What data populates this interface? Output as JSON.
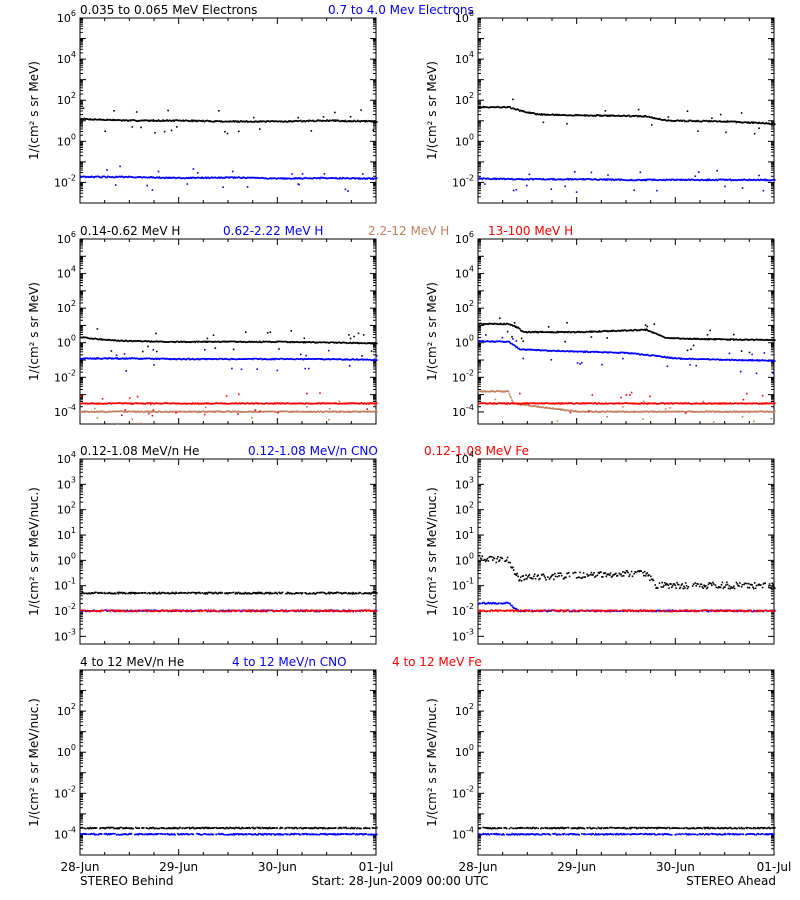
{
  "colors": {
    "black": "#000000",
    "blue": "#0000ff",
    "tan": "#c08060",
    "red": "#ff0000"
  },
  "row_titles": [
    [
      {
        "text": "0.035 to 0.065 MeV Electrons",
        "color": "black"
      },
      {
        "text": "0.7 to 4.0 Mev Electrons",
        "color": "blue"
      }
    ],
    [
      {
        "text": "0.14-0.62 MeV H",
        "color": "black"
      },
      {
        "text": "0.62-2.22 MeV H",
        "color": "blue"
      },
      {
        "text": "2.2-12 MeV H",
        "color": "tan"
      },
      {
        "text": "13-100 MeV H",
        "color": "red"
      }
    ],
    [
      {
        "text": "0.12-1.08 MeV/n He",
        "color": "black"
      },
      {
        "text": "0.12-1.08 MeV/n CNO",
        "color": "blue"
      },
      {
        "text": "0.12-1.08 MeV Fe",
        "color": "red"
      }
    ],
    [
      {
        "text": "4 to 12 MeV/n He",
        "color": "black"
      },
      {
        "text": "4 to 12 MeV/n CNO",
        "color": "blue"
      },
      {
        "text": "4 to 12 MeV Fe",
        "color": "red"
      }
    ]
  ],
  "footer": {
    "left": "STEREO Behind",
    "center": "Start: 28-Jun-2009 00:00 UTC",
    "right": "STEREO Ahead"
  },
  "chart_data": [
    {
      "type": "scatter",
      "id": "electrons-behind",
      "row": 0,
      "col": 0,
      "ylabel": "1/(cm² s sr MeV)",
      "yscale": "log",
      "ylim": [
        0.001,
        1000000
      ],
      "yticks": [
        {
          "exp": -2,
          "label": "10-2"
        },
        {
          "exp": 0,
          "label": "100"
        },
        {
          "exp": 2,
          "label": "102"
        },
        {
          "exp": 4,
          "label": "104"
        },
        {
          "exp": 6,
          "label": "106"
        }
      ],
      "xlim": [
        0,
        3
      ],
      "xticks": [
        "28-Jun",
        "29-Jun",
        "30-Jun",
        "01-Jul"
      ],
      "series": [
        {
          "color": "black",
          "points": [
            [
              0,
              12
            ],
            [
              0.5,
              10
            ],
            [
              1,
              10
            ],
            [
              1.5,
              9
            ],
            [
              2,
              9
            ],
            [
              2.5,
              10
            ],
            [
              3,
              9
            ]
          ]
        },
        {
          "color": "blue",
          "points": [
            [
              0,
              0.018
            ],
            [
              0.5,
              0.018
            ],
            [
              1,
              0.016
            ],
            [
              1.5,
              0.017
            ],
            [
              2,
              0.015
            ],
            [
              2.5,
              0.016
            ],
            [
              3,
              0.015
            ]
          ]
        }
      ]
    },
    {
      "type": "scatter",
      "id": "electrons-ahead",
      "row": 0,
      "col": 1,
      "ylabel": "1/(cm² s sr MeV)",
      "yscale": "log",
      "ylim": [
        0.001,
        1000000
      ],
      "yticks": [
        {
          "exp": -2,
          "label": "10-2"
        },
        {
          "exp": 0,
          "label": "100"
        },
        {
          "exp": 2,
          "label": "102"
        },
        {
          "exp": 4,
          "label": "104"
        },
        {
          "exp": 6,
          "label": "106"
        }
      ],
      "xlim": [
        0,
        3
      ],
      "xticks": [
        "28-Jun",
        "29-Jun",
        "30-Jun",
        "01-Jul"
      ],
      "series": [
        {
          "color": "black",
          "points": [
            [
              0,
              45
            ],
            [
              0.3,
              45
            ],
            [
              0.45,
              28
            ],
            [
              0.6,
              20
            ],
            [
              1,
              18
            ],
            [
              1.5,
              17
            ],
            [
              1.7,
              16
            ],
            [
              1.9,
              10
            ],
            [
              2.5,
              9
            ],
            [
              3,
              7
            ]
          ]
        },
        {
          "color": "blue",
          "points": [
            [
              0,
              0.015
            ],
            [
              0.5,
              0.014
            ],
            [
              1,
              0.014
            ],
            [
              1.5,
              0.013
            ],
            [
              2,
              0.013
            ],
            [
              2.5,
              0.013
            ],
            [
              3,
              0.013
            ]
          ]
        }
      ]
    },
    {
      "type": "scatter",
      "id": "protons-behind",
      "row": 1,
      "col": 0,
      "ylabel": "1/(cm² s sr MeV)",
      "yscale": "log",
      "ylim": [
        2e-05,
        1000000
      ],
      "yticks": [
        {
          "exp": -4,
          "label": "10-4"
        },
        {
          "exp": -2,
          "label": "10-2"
        },
        {
          "exp": 0,
          "label": "100"
        },
        {
          "exp": 2,
          "label": "102"
        },
        {
          "exp": 4,
          "label": "104"
        },
        {
          "exp": 6,
          "label": "106"
        }
      ],
      "xlim": [
        0,
        3
      ],
      "xticks": [
        "28-Jun",
        "29-Jun",
        "30-Jun",
        "01-Jul"
      ],
      "series": [
        {
          "color": "black",
          "points": [
            [
              0,
              2
            ],
            [
              0.15,
              1.6
            ],
            [
              0.5,
              1.2
            ],
            [
              1,
              1.1
            ],
            [
              1.5,
              1.1
            ],
            [
              2,
              1.1
            ],
            [
              2.5,
              1.0
            ],
            [
              3,
              0.9
            ]
          ]
        },
        {
          "color": "blue",
          "points": [
            [
              0,
              0.12
            ],
            [
              0.5,
              0.12
            ],
            [
              1,
              0.11
            ],
            [
              1.5,
              0.11
            ],
            [
              2,
              0.11
            ],
            [
              2.5,
              0.11
            ],
            [
              3,
              0.1
            ]
          ]
        },
        {
          "color": "tan",
          "points": [
            [
              0,
              0.0001
            ],
            [
              1,
              0.0001
            ],
            [
              2,
              0.0001
            ],
            [
              3,
              0.0001
            ]
          ]
        },
        {
          "color": "red",
          "points": [
            [
              0,
              0.0003
            ],
            [
              1,
              0.0003
            ],
            [
              2,
              0.0003
            ],
            [
              3,
              0.0003
            ]
          ]
        }
      ]
    },
    {
      "type": "scatter",
      "id": "protons-ahead",
      "row": 1,
      "col": 1,
      "ylabel": "1/(cm² s sr MeV)",
      "yscale": "log",
      "ylim": [
        2e-05,
        1000000
      ],
      "yticks": [
        {
          "exp": -4,
          "label": "10-4"
        },
        {
          "exp": -2,
          "label": "10-2"
        },
        {
          "exp": 0,
          "label": "100"
        },
        {
          "exp": 2,
          "label": "102"
        },
        {
          "exp": 4,
          "label": "104"
        },
        {
          "exp": 6,
          "label": "106"
        }
      ],
      "xlim": [
        0,
        3
      ],
      "xticks": [
        "28-Jun",
        "29-Jun",
        "30-Jun",
        "01-Jul"
      ],
      "series": [
        {
          "color": "black",
          "points": [
            [
              0,
              12
            ],
            [
              0.3,
              12
            ],
            [
              0.4,
              7
            ],
            [
              0.45,
              4
            ],
            [
              1,
              4
            ],
            [
              1.5,
              5
            ],
            [
              1.7,
              5.5
            ],
            [
              1.9,
              1.8
            ],
            [
              2.5,
              1.5
            ],
            [
              3,
              1.4
            ]
          ]
        },
        {
          "color": "blue",
          "points": [
            [
              0,
              1.2
            ],
            [
              0.3,
              1.1
            ],
            [
              0.42,
              0.4
            ],
            [
              1,
              0.3
            ],
            [
              1.5,
              0.25
            ],
            [
              1.75,
              0.18
            ],
            [
              2,
              0.12
            ],
            [
              2.5,
              0.1
            ],
            [
              3,
              0.09
            ]
          ]
        },
        {
          "color": "tan",
          "points": [
            [
              0,
              0.0015
            ],
            [
              0.3,
              0.0015
            ],
            [
              0.35,
              0.0003
            ],
            [
              1,
              0.0001
            ],
            [
              2,
              0.0001
            ],
            [
              3,
              0.0001
            ]
          ]
        },
        {
          "color": "red",
          "points": [
            [
              0,
              0.0003
            ],
            [
              1,
              0.0003
            ],
            [
              2,
              0.0003
            ],
            [
              3,
              0.0003
            ]
          ]
        }
      ]
    },
    {
      "type": "scatter",
      "id": "ions-low-behind",
      "row": 2,
      "col": 0,
      "ylabel": "1/(cm² s sr MeV/nuc.)",
      "yscale": "log",
      "ylim": [
        0.0005,
        10000
      ],
      "yticks": [
        {
          "exp": -3,
          "label": "10-3"
        },
        {
          "exp": -2,
          "label": "10-2"
        },
        {
          "exp": -1,
          "label": "10-1"
        },
        {
          "exp": 0,
          "label": "100"
        },
        {
          "exp": 1,
          "label": "101"
        },
        {
          "exp": 2,
          "label": "102"
        },
        {
          "exp": 3,
          "label": "103"
        },
        {
          "exp": 4,
          "label": "104"
        }
      ],
      "xlim": [
        0,
        3
      ],
      "xticks": [
        "28-Jun",
        "29-Jun",
        "30-Jun",
        "01-Jul"
      ],
      "series": [
        {
          "color": "black",
          "points": [
            [
              0,
              0.05
            ],
            [
              1,
              0.05
            ],
            [
              2,
              0.05
            ],
            [
              3,
              0.05
            ]
          ]
        },
        {
          "color": "blue",
          "points": [
            [
              0,
              0.01
            ],
            [
              1,
              0.01
            ],
            [
              2,
              0.01
            ],
            [
              3,
              0.01
            ]
          ]
        },
        {
          "color": "red",
          "points": [
            [
              0,
              0.01
            ],
            [
              1,
              0.01
            ],
            [
              2,
              0.01
            ],
            [
              3,
              0.01
            ]
          ]
        }
      ]
    },
    {
      "type": "scatter",
      "id": "ions-low-ahead",
      "row": 2,
      "col": 1,
      "ylabel": "1/(cm² s sr MeV/nuc.)",
      "yscale": "log",
      "ylim": [
        0.0005,
        10000
      ],
      "yticks": [
        {
          "exp": -3,
          "label": "10-3"
        },
        {
          "exp": -2,
          "label": "10-2"
        },
        {
          "exp": -1,
          "label": "10-1"
        },
        {
          "exp": 0,
          "label": "100"
        },
        {
          "exp": 1,
          "label": "101"
        },
        {
          "exp": 2,
          "label": "102"
        },
        {
          "exp": 3,
          "label": "103"
        },
        {
          "exp": 4,
          "label": "104"
        }
      ],
      "xlim": [
        0,
        3
      ],
      "xticks": [
        "28-Jun",
        "29-Jun",
        "30-Jun",
        "01-Jul"
      ],
      "series": [
        {
          "color": "black",
          "points": [
            [
              0,
              1.2
            ],
            [
              0.3,
              1.0
            ],
            [
              0.4,
              0.2
            ],
            [
              1,
              0.25
            ],
            [
              1.5,
              0.3
            ],
            [
              1.7,
              0.3
            ],
            [
              1.8,
              0.1
            ],
            [
              2.5,
              0.1
            ],
            [
              3,
              0.1
            ]
          ]
        },
        {
          "color": "blue",
          "points": [
            [
              0,
              0.02
            ],
            [
              0.3,
              0.02
            ],
            [
              0.4,
              0.01
            ],
            [
              3,
              0.01
            ]
          ]
        },
        {
          "color": "red",
          "points": [
            [
              0,
              0.01
            ],
            [
              3,
              0.01
            ]
          ]
        }
      ]
    },
    {
      "type": "scatter",
      "id": "ions-high-behind",
      "row": 3,
      "col": 0,
      "ylabel": "1/(cm² s sr MeV/nuc.)",
      "yscale": "log",
      "ylim": [
        1e-05,
        10000
      ],
      "yticks": [
        {
          "exp": -4,
          "label": "10-4"
        },
        {
          "exp": -2,
          "label": "10-2"
        },
        {
          "exp": 0,
          "label": "100"
        },
        {
          "exp": 2,
          "label": "102"
        }
      ],
      "xlim": [
        0,
        3
      ],
      "xticks": [
        "28-Jun",
        "29-Jun",
        "30-Jun",
        "01-Jul"
      ],
      "series": [
        {
          "color": "black",
          "points": [
            [
              0,
              0.0002
            ],
            [
              1,
              0.0002
            ],
            [
              2,
              0.0002
            ],
            [
              3,
              0.0002
            ]
          ]
        },
        {
          "color": "blue",
          "points": [
            [
              0,
              0.0001
            ],
            [
              1,
              0.0001
            ],
            [
              2,
              0.0001
            ],
            [
              3,
              0.0001
            ]
          ]
        }
      ]
    },
    {
      "type": "scatter",
      "id": "ions-high-ahead",
      "row": 3,
      "col": 1,
      "ylabel": "1/(cm² s sr MeV/nuc.)",
      "yscale": "log",
      "ylim": [
        1e-05,
        10000
      ],
      "yticks": [
        {
          "exp": -4,
          "label": "10-4"
        },
        {
          "exp": -2,
          "label": "10-2"
        },
        {
          "exp": 0,
          "label": "100"
        },
        {
          "exp": 2,
          "label": "102"
        }
      ],
      "xlim": [
        0,
        3
      ],
      "xticks": [
        "28-Jun",
        "29-Jun",
        "30-Jun",
        "01-Jul"
      ],
      "series": [
        {
          "color": "black",
          "points": [
            [
              0,
              0.0002
            ],
            [
              1,
              0.0002
            ],
            [
              2,
              0.0002
            ],
            [
              3,
              0.0002
            ]
          ]
        },
        {
          "color": "blue",
          "points": [
            [
              0,
              0.0001
            ],
            [
              1,
              0.0001
            ],
            [
              2,
              0.0001
            ],
            [
              3,
              0.0001
            ]
          ]
        }
      ]
    }
  ]
}
